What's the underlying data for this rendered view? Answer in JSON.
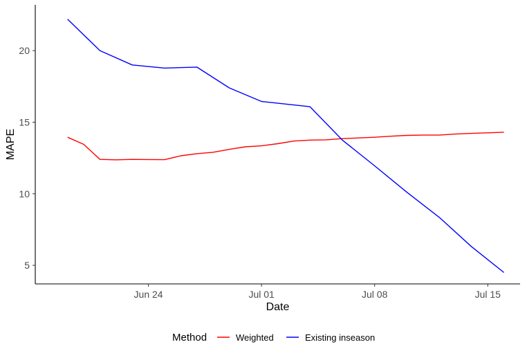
{
  "chart_data": {
    "type": "line",
    "xlabel": "Date",
    "ylabel": "MAPE",
    "x_tick_labels": [
      "Jun 24",
      "Jul 01",
      "Jul 08",
      "Jul 15"
    ],
    "x_tick_dates": [
      "2024-06-24",
      "2024-07-01",
      "2024-07-08",
      "2024-07-15"
    ],
    "xlim": [
      "2024-06-17",
      "2024-07-17"
    ],
    "y_ticks": [
      5,
      10,
      15,
      20
    ],
    "ylim": [
      3.7,
      23.2
    ],
    "grid": false,
    "legend": {
      "title": "Method",
      "position": "bottom"
    },
    "series": [
      {
        "name": "Weighted",
        "color": "#ff0000",
        "points": [
          [
            "2024-06-19",
            13.95
          ],
          [
            "2024-06-20",
            13.45
          ],
          [
            "2024-06-21",
            12.4
          ],
          [
            "2024-06-22",
            12.37
          ],
          [
            "2024-06-23",
            12.4
          ],
          [
            "2024-06-24",
            12.39
          ],
          [
            "2024-06-25",
            12.38
          ],
          [
            "2024-06-26",
            12.65
          ],
          [
            "2024-06-27",
            12.8
          ],
          [
            "2024-06-28",
            12.9
          ],
          [
            "2024-06-29",
            13.1
          ],
          [
            "2024-06-30",
            13.28
          ],
          [
            "2024-07-01",
            13.35
          ],
          [
            "2024-07-02",
            13.5
          ],
          [
            "2024-07-03",
            13.68
          ],
          [
            "2024-07-04",
            13.75
          ],
          [
            "2024-07-05",
            13.77
          ],
          [
            "2024-07-06",
            13.85
          ],
          [
            "2024-07-07",
            13.9
          ],
          [
            "2024-07-08",
            13.95
          ],
          [
            "2024-07-09",
            14.02
          ],
          [
            "2024-07-10",
            14.08
          ],
          [
            "2024-07-11",
            14.1
          ],
          [
            "2024-07-12",
            14.1
          ],
          [
            "2024-07-13",
            14.17
          ],
          [
            "2024-07-14",
            14.22
          ],
          [
            "2024-07-15",
            14.26
          ],
          [
            "2024-07-16",
            14.3
          ]
        ]
      },
      {
        "name": "Existing inseason",
        "color": "#0000ff",
        "points": [
          [
            "2024-06-19",
            22.2
          ],
          [
            "2024-06-21",
            20.0
          ],
          [
            "2024-06-23",
            19.0
          ],
          [
            "2024-06-25",
            18.78
          ],
          [
            "2024-06-27",
            18.85
          ],
          [
            "2024-06-29",
            17.4
          ],
          [
            "2024-07-01",
            16.45
          ],
          [
            "2024-07-04",
            16.08
          ],
          [
            "2024-07-06",
            13.75
          ],
          [
            "2024-07-08",
            11.95
          ],
          [
            "2024-07-10",
            10.1
          ],
          [
            "2024-07-12",
            8.35
          ],
          [
            "2024-07-14",
            6.3
          ],
          [
            "2024-07-16",
            4.5
          ]
        ]
      }
    ]
  }
}
